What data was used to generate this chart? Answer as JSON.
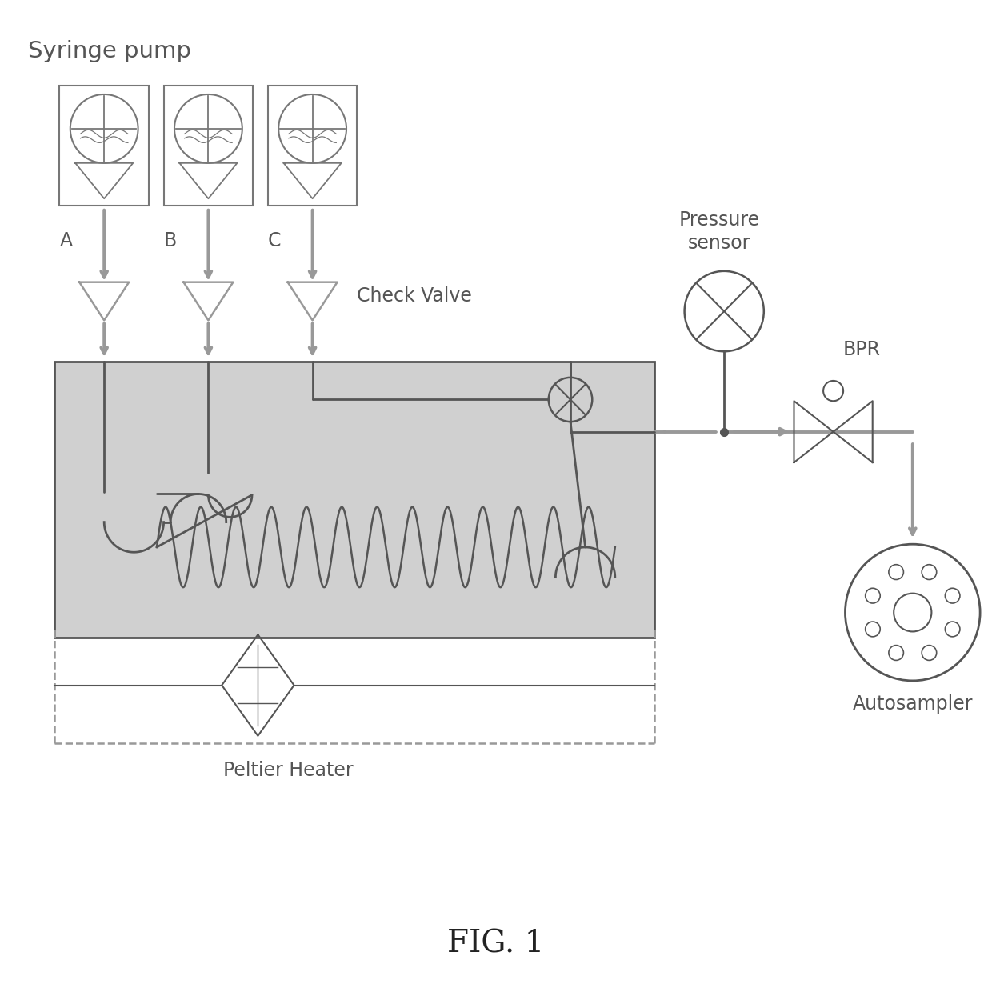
{
  "title": "FIG. 1",
  "bg_color": "#ffffff",
  "line_color": "#999999",
  "dark_line": "#555555",
  "text_color": "#555555",
  "syringe_pump_label": "Syringe pump",
  "check_valve_label": "Check Valve",
  "pressure_sensor_label": "Pressure\nsensor",
  "bpr_label": "BPR",
  "autosampler_label": "Autosampler",
  "peltier_label": "Peltier Heater",
  "pump_labels": [
    "A",
    "B",
    "C"
  ],
  "reactor_fill": "#cccccc",
  "figsize": [
    12.4,
    12.55
  ],
  "dpi": 100
}
